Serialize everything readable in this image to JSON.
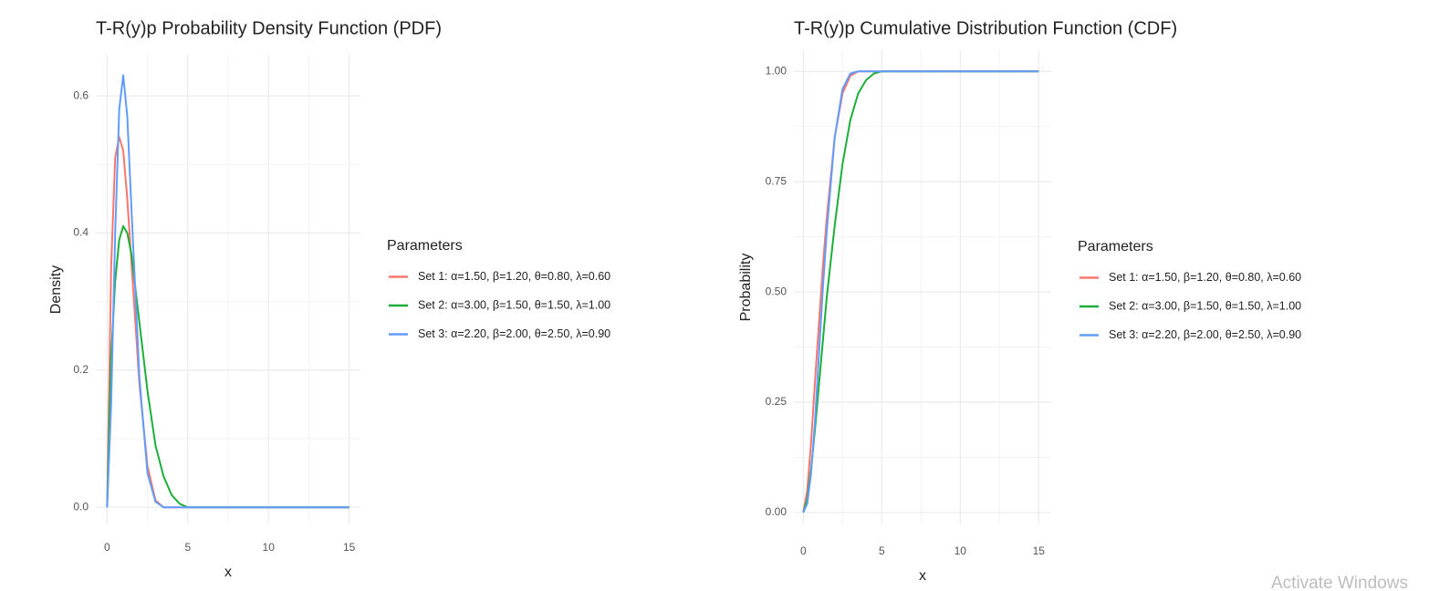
{
  "chart_data": [
    {
      "type": "line",
      "title": "T-R(y)p Probability Density Function (PDF)",
      "x_label": "x",
      "y_label": "Density",
      "legend_title": "Parameters",
      "legend": "right",
      "grid": true,
      "x": [
        0,
        0.25,
        0.5,
        0.75,
        1,
        1.25,
        1.5,
        2,
        2.5,
        3,
        3.5,
        4,
        4.5,
        5,
        6,
        8,
        10,
        12,
        15
      ],
      "series": [
        {
          "name": "Set 1: α=1.50, β=1.20, θ=0.80, λ=0.60",
          "color": "#F8766D",
          "values": [
            0,
            0.35,
            0.51,
            0.54,
            0.52,
            0.45,
            0.36,
            0.18,
            0.06,
            0.01,
            0,
            0,
            0,
            0,
            0,
            0,
            0,
            0,
            0
          ]
        },
        {
          "name": "Set 2: α=3.00, β=1.50, θ=1.50, λ=1.00",
          "color": "#1DAE3A",
          "values": [
            0,
            0.22,
            0.33,
            0.39,
            0.41,
            0.4,
            0.37,
            0.27,
            0.17,
            0.09,
            0.045,
            0.018,
            0.005,
            0,
            0,
            0,
            0,
            0,
            0
          ]
        },
        {
          "name": "Set 3: α=2.20, β=2.00, θ=2.50, λ=0.90",
          "color": "#619CFF",
          "values": [
            0,
            0.15,
            0.4,
            0.58,
            0.63,
            0.57,
            0.44,
            0.19,
            0.05,
            0.008,
            0,
            0,
            0,
            0,
            0,
            0,
            0,
            0,
            0
          ]
        }
      ],
      "xlim": [
        -0.7,
        15.7
      ],
      "xticks": [
        0,
        5,
        10,
        15
      ],
      "xminor": [
        2.5,
        7.5,
        12.5
      ],
      "ylim": [
        -0.025,
        0.66
      ],
      "yticks": [
        {
          "value": 0,
          "label": "0.0"
        },
        0.2,
        0.4,
        0.6
      ],
      "yminor": [
        0.1,
        0.3,
        0.5
      ]
    },
    {
      "type": "line",
      "title": "T-R(y)p Cumulative Distribution Function (CDF)",
      "x_label": "x",
      "y_label": "Probability",
      "legend_title": "Parameters",
      "legend": "right",
      "grid": true,
      "x": [
        0,
        0.25,
        0.5,
        0.75,
        1,
        1.25,
        1.5,
        2,
        2.5,
        3,
        3.5,
        4,
        4.5,
        5,
        6,
        8,
        10,
        12,
        15
      ],
      "series": [
        {
          "name": "Set 1: α=1.50, β=1.20, θ=0.80, λ=0.60",
          "color": "#F8766D",
          "values": [
            0,
            0.05,
            0.16,
            0.3,
            0.43,
            0.56,
            0.67,
            0.85,
            0.95,
            0.99,
            1,
            1,
            1,
            1,
            1,
            1,
            1,
            1,
            1
          ]
        },
        {
          "name": "Set 2: α=3.00, β=1.50, θ=1.50, λ=1.00",
          "color": "#1DAE3A",
          "values": [
            0,
            0.03,
            0.1,
            0.19,
            0.29,
            0.39,
            0.49,
            0.65,
            0.79,
            0.89,
            0.95,
            0.98,
            0.995,
            1,
            1,
            1,
            1,
            1,
            1
          ]
        },
        {
          "name": "Set 3: α=2.20, β=2.00, θ=2.50, λ=0.90",
          "color": "#619CFF",
          "values": [
            0,
            0.02,
            0.09,
            0.21,
            0.36,
            0.51,
            0.64,
            0.85,
            0.96,
            0.995,
            1,
            1,
            1,
            1,
            1,
            1,
            1,
            1,
            1
          ]
        }
      ],
      "xlim": [
        -0.6,
        15.8
      ],
      "xticks": [
        0,
        5,
        10,
        15
      ],
      "xminor": [
        2.5,
        7.5,
        12.5
      ],
      "ylim": [
        -0.027,
        1.048
      ],
      "yticks": [
        {
          "value": 0,
          "label": "0.00"
        },
        0.25,
        {
          "value": 0.5,
          "label": "0.50"
        },
        0.75,
        {
          "value": 1,
          "label": "1.00"
        }
      ],
      "yminor": [
        0.125,
        0.375,
        0.625,
        0.875
      ]
    }
  ],
  "watermark": "Activate Windows"
}
